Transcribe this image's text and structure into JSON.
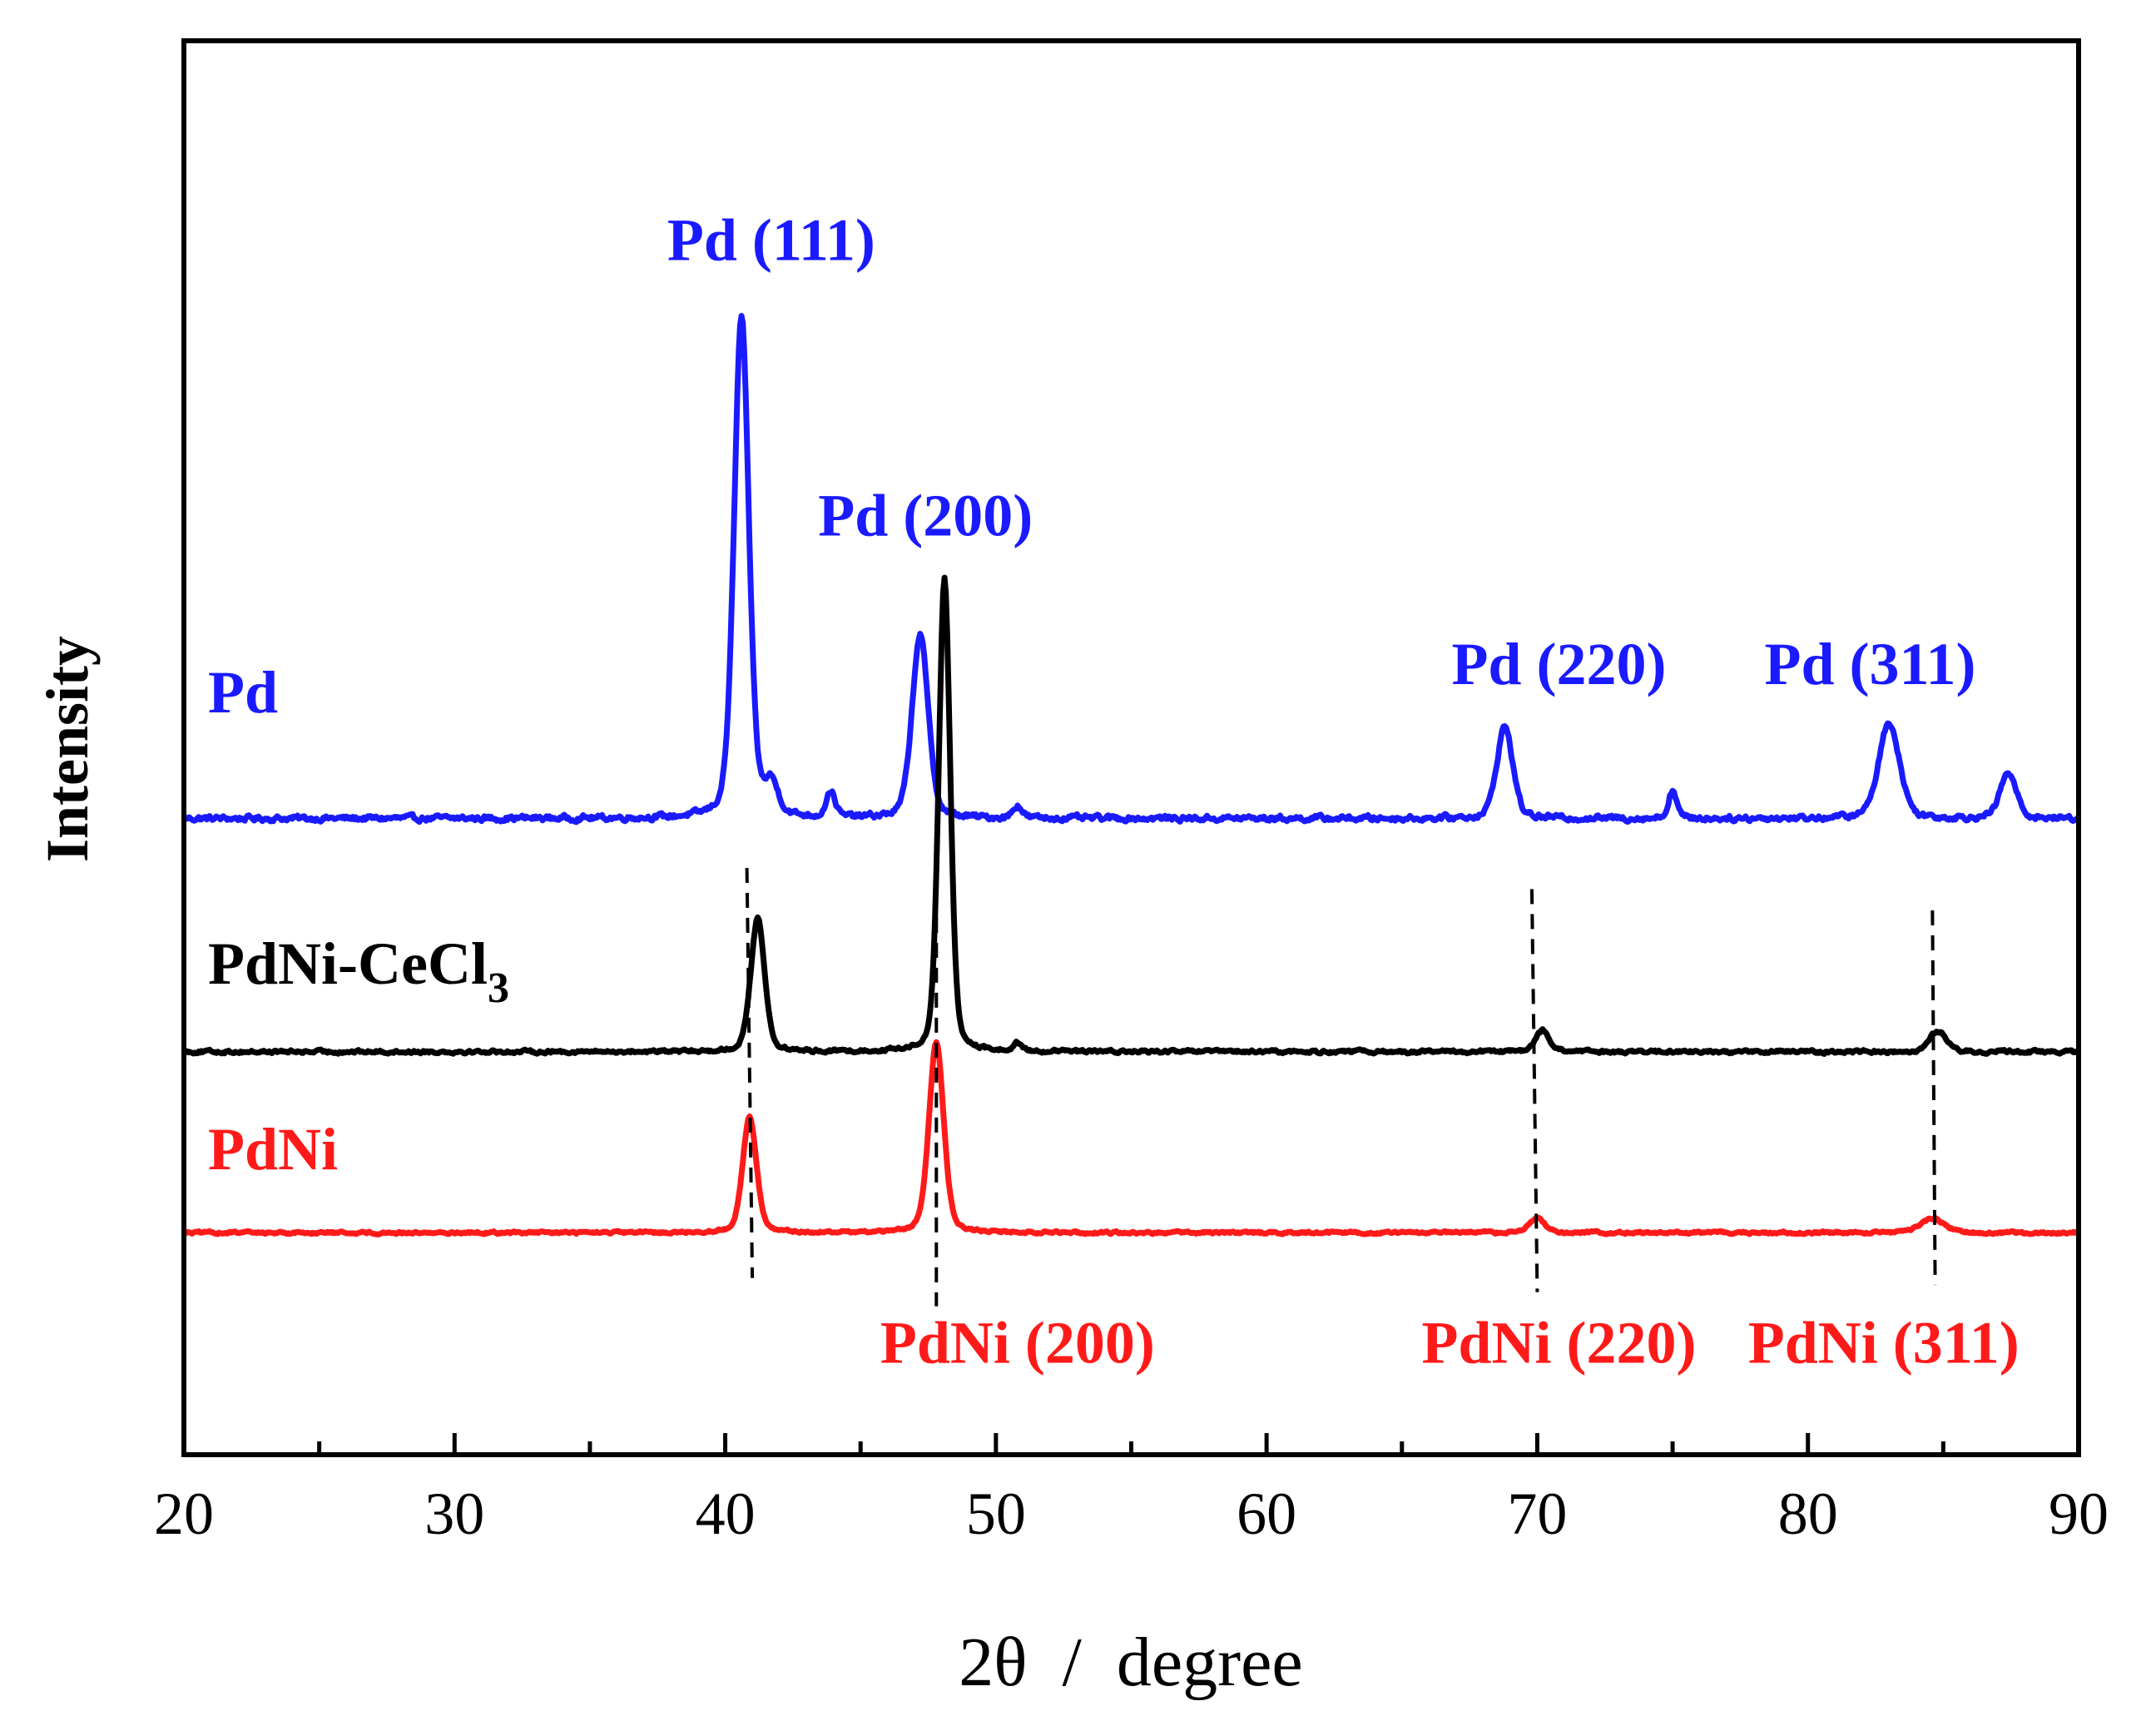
{
  "chart_data": {
    "type": "line",
    "title": "",
    "xlabel": "2θ  /  degree",
    "ylabel": "Intensity",
    "xlim": [
      20,
      90
    ],
    "ylim": [
      0,
      100
    ],
    "x_ticks": [
      20,
      30,
      40,
      50,
      60,
      70,
      80,
      90
    ],
    "y_ticks_shown": false,
    "grid": false,
    "series": [
      {
        "name": "Pd",
        "label_main": "Pd",
        "label_sub": "",
        "color": "#1a1aff",
        "baseline": 45,
        "noise": 0.35,
        "peaks": [
          {
            "x": 40.6,
            "height": 35.5,
            "width": 0.32
          },
          {
            "x": 41.7,
            "height": 2.2,
            "width": 0.3
          },
          {
            "x": 43.9,
            "height": 1.8,
            "width": 0.2
          },
          {
            "x": 47.2,
            "height": 13.0,
            "width": 0.35
          },
          {
            "x": 50.8,
            "height": 0.9,
            "width": 0.2
          },
          {
            "x": 68.8,
            "height": 6.5,
            "width": 0.35
          },
          {
            "x": 75.0,
            "height": 2.0,
            "width": 0.18
          },
          {
            "x": 83.0,
            "height": 6.8,
            "width": 0.45
          },
          {
            "x": 87.4,
            "height": 3.2,
            "width": 0.35
          }
        ]
      },
      {
        "name": "PdNi-CeCl3",
        "label_main": "PdNi-CeCl",
        "label_sub": "3",
        "color": "#000000",
        "baseline": 28.5,
        "noise": 0.2,
        "peaks": [
          {
            "x": 41.2,
            "height": 9.5,
            "width": 0.3
          },
          {
            "x": 48.1,
            "height": 33.5,
            "width": 0.25
          },
          {
            "x": 50.8,
            "height": 0.6,
            "width": 0.15
          },
          {
            "x": 70.2,
            "height": 1.5,
            "width": 0.3
          },
          {
            "x": 84.8,
            "height": 1.5,
            "width": 0.35
          }
        ]
      },
      {
        "name": "PdNi",
        "label_main": "PdNi",
        "label_sub": "",
        "color": "#ff1a1a",
        "baseline": 15.7,
        "noise": 0.15,
        "peaks": [
          {
            "x": 40.9,
            "height": 8.2,
            "width": 0.3
          },
          {
            "x": 47.8,
            "height": 13.5,
            "width": 0.32
          },
          {
            "x": 70.0,
            "height": 1.0,
            "width": 0.35
          },
          {
            "x": 84.6,
            "height": 1.0,
            "width": 0.5
          }
        ]
      }
    ],
    "reference_lines": [
      {
        "x_top": 40.8,
        "x_bottom": 41.0,
        "y_top": 41.5,
        "y_bottom": 12.5
      },
      {
        "x_top": 47.8,
        "x_bottom": 47.8,
        "y_top": 41.5,
        "y_bottom": 10.5
      },
      {
        "x_top": 69.8,
        "x_bottom": 70.0,
        "y_top": 40.0,
        "y_bottom": 11.5
      },
      {
        "x_top": 84.6,
        "x_bottom": 84.7,
        "y_top": 38.5,
        "y_bottom": 12.0
      }
    ],
    "annotations": [
      {
        "text": "Pd (111)",
        "x": 41.7,
        "y": 84.5,
        "color": "#1a1aff"
      },
      {
        "text": "Pd (200)",
        "x": 47.4,
        "y": 65.0,
        "color": "#1a1aff"
      },
      {
        "text": "Pd (220)",
        "x": 70.8,
        "y": 54.5,
        "color": "#1a1aff"
      },
      {
        "text": "Pd (311)",
        "x": 82.3,
        "y": 54.5,
        "color": "#1a1aff"
      },
      {
        "text": "PdNi (200)",
        "x": 50.8,
        "y": 6.5,
        "color": "#ff1a1a"
      },
      {
        "text": "PdNi (220)",
        "x": 70.8,
        "y": 6.5,
        "color": "#ff1a1a"
      },
      {
        "text": "PdNi (311)",
        "x": 82.8,
        "y": 6.5,
        "color": "#ff1a1a"
      }
    ]
  }
}
